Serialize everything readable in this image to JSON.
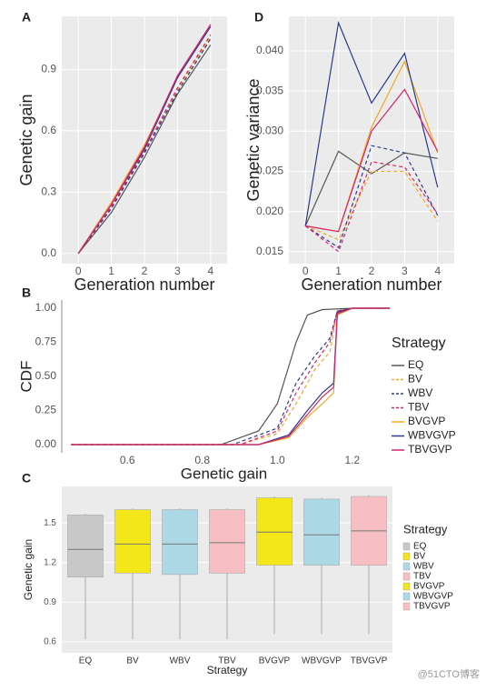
{
  "chart_data": [
    {
      "type": "line",
      "panel_label": "A",
      "xlabel": "Generation number",
      "ylabel": "Genetic gain",
      "x": [
        0,
        1,
        2,
        3,
        4
      ],
      "xlim": [
        -0.5,
        4.5
      ],
      "xticks": [
        0,
        1,
        2,
        3,
        4
      ],
      "ylim": [
        -0.05,
        1.16
      ],
      "yticks": [
        {
          "value": 0,
          "label": "0.0"
        },
        0.3,
        0.6,
        0.9
      ],
      "grid": true,
      "background": "#ebebeb",
      "series": [
        {
          "name": "EQ",
          "color": "#555555",
          "line_style": "solid",
          "values": [
            0,
            0.2,
            0.47,
            0.78,
            1.02
          ]
        },
        {
          "name": "BV",
          "color": "#f5a623",
          "line_style": "dashed",
          "values": [
            0,
            0.22,
            0.5,
            0.8,
            1.06
          ]
        },
        {
          "name": "WBV",
          "color": "#2b3a8c",
          "line_style": "dashed",
          "values": [
            0,
            0.22,
            0.49,
            0.79,
            1.05
          ]
        },
        {
          "name": "TBV",
          "color": "#d6246e",
          "line_style": "dashed",
          "values": [
            0,
            0.23,
            0.5,
            0.81,
            1.07
          ]
        },
        {
          "name": "BVGVP",
          "color": "#f5a623",
          "line_style": "solid",
          "values": [
            0,
            0.25,
            0.53,
            0.86,
            1.12
          ]
        },
        {
          "name": "WBVGVP",
          "color": "#2b3a8c",
          "line_style": "solid",
          "values": [
            0,
            0.24,
            0.51,
            0.86,
            1.11
          ]
        },
        {
          "name": "TBVGVP",
          "color": "#d6246e",
          "line_style": "solid",
          "values": [
            0,
            0.24,
            0.52,
            0.87,
            1.12
          ]
        }
      ]
    },
    {
      "type": "line",
      "panel_label": "D",
      "xlabel": "Generation number",
      "ylabel": "Genetic variance",
      "x": [
        0,
        1,
        2,
        3,
        4
      ],
      "xlim": [
        -0.5,
        4.5
      ],
      "xticks": [
        0,
        1,
        2,
        3,
        4
      ],
      "ylim": [
        0.0135,
        0.0443
      ],
      "yticks": [
        0.015,
        {
          "value": 0.02,
          "label": "0.020"
        },
        0.025,
        {
          "value": 0.03,
          "label": "0.030"
        },
        0.035,
        {
          "value": 0.04,
          "label": "0.040"
        }
      ],
      "grid": true,
      "background": "#ebebeb",
      "series": [
        {
          "name": "EQ",
          "color": "#555555",
          "line_style": "solid",
          "values": [
            0.0182,
            0.0275,
            0.0247,
            0.0273,
            0.0266
          ]
        },
        {
          "name": "BV",
          "color": "#f5a623",
          "line_style": "dashed",
          "values": [
            0.0182,
            0.0165,
            0.025,
            0.025,
            0.0188
          ]
        },
        {
          "name": "WBV",
          "color": "#2b3a8c",
          "line_style": "dashed",
          "values": [
            0.0182,
            0.0155,
            0.0282,
            0.0273,
            0.0195
          ]
        },
        {
          "name": "TBV",
          "color": "#d6246e",
          "line_style": "dashed",
          "values": [
            0.0182,
            0.015,
            0.0262,
            0.0255,
            0.0197
          ]
        },
        {
          "name": "BVGVP",
          "color": "#f5a623",
          "line_style": "solid",
          "values": [
            0.0182,
            0.0175,
            0.0305,
            0.0387,
            0.0273
          ]
        },
        {
          "name": "WBVGVP",
          "color": "#2b3a8c",
          "line_style": "solid",
          "values": [
            0.0182,
            0.0435,
            0.0335,
            0.0397,
            0.023
          ]
        },
        {
          "name": "TBVGVP",
          "color": "#d6246e",
          "line_style": "solid",
          "values": [
            0.0182,
            0.0175,
            0.03,
            0.0352,
            0.0275
          ]
        }
      ]
    },
    {
      "type": "line",
      "panel_label": "B",
      "xlabel": "Genetic gain",
      "ylabel": "CDF",
      "legend_title": "Strategy",
      "legend": "right",
      "xlim": [
        0.425,
        1.29
      ],
      "xticks": [
        0.6,
        0.8,
        {
          "value": 1,
          "label": "1.0"
        },
        1.2
      ],
      "ylim": [
        -0.06,
        1.06
      ],
      "yticks": [
        {
          "value": 0,
          "label": "0.00"
        },
        0.25,
        {
          "value": 0.5,
          "label": "0.50"
        },
        0.75,
        {
          "value": 1,
          "label": "1.00"
        }
      ],
      "grid": false,
      "background": "#ffffff",
      "series": [
        {
          "name": "EQ",
          "color": "#555555",
          "line_style": "solid",
          "x": [
            0.45,
            0.85,
            0.95,
            1.0,
            1.05,
            1.08,
            1.12,
            1.2,
            1.3
          ],
          "values": [
            0,
            0,
            0.1,
            0.3,
            0.75,
            0.95,
            0.99,
            1,
            1
          ]
        },
        {
          "name": "BV",
          "color": "#f5a623",
          "line_style": "dashed",
          "x": [
            0.45,
            0.9,
            1.0,
            1.05,
            1.1,
            1.14,
            1.16,
            1.2,
            1.3
          ],
          "values": [
            0,
            0,
            0.08,
            0.3,
            0.55,
            0.68,
            0.98,
            1,
            1
          ]
        },
        {
          "name": "WBV",
          "color": "#2b3a8c",
          "line_style": "dashed",
          "x": [
            0.45,
            0.88,
            1.0,
            1.05,
            1.1,
            1.14,
            1.16,
            1.2,
            1.3
          ],
          "values": [
            0,
            0,
            0.12,
            0.45,
            0.65,
            0.78,
            0.98,
            1,
            1
          ]
        },
        {
          "name": "TBV",
          "color": "#d6246e",
          "line_style": "dashed",
          "x": [
            0.45,
            0.9,
            1.0,
            1.05,
            1.1,
            1.14,
            1.16,
            1.2,
            1.3
          ],
          "values": [
            0,
            0,
            0.1,
            0.38,
            0.6,
            0.75,
            0.98,
            1,
            1
          ]
        },
        {
          "name": "BVGVP",
          "color": "#f5a623",
          "line_style": "solid",
          "x": [
            0.45,
            0.95,
            1.03,
            1.08,
            1.12,
            1.15,
            1.16,
            1.2,
            1.3
          ],
          "values": [
            0,
            0,
            0.05,
            0.2,
            0.3,
            0.38,
            0.95,
            1,
            1
          ]
        },
        {
          "name": "WBVGVP",
          "color": "#2b3a8c",
          "line_style": "solid",
          "x": [
            0.45,
            0.95,
            1.03,
            1.08,
            1.12,
            1.15,
            1.16,
            1.2,
            1.3
          ],
          "values": [
            0,
            0,
            0.07,
            0.25,
            0.38,
            0.45,
            0.97,
            1,
            1
          ]
        },
        {
          "name": "TBVGVP",
          "color": "#d6246e",
          "line_style": "solid",
          "x": [
            0.45,
            0.95,
            1.03,
            1.08,
            1.12,
            1.15,
            1.16,
            1.2,
            1.3
          ],
          "values": [
            0,
            0,
            0.06,
            0.22,
            0.35,
            0.42,
            0.96,
            1,
            1
          ]
        }
      ]
    },
    {
      "type": "box",
      "panel_label": "C",
      "xlabel": "Strategy",
      "ylabel": "Genetic gain",
      "legend_title": "Strategy",
      "legend": "right",
      "categories": [
        "EQ",
        "BV",
        "WBV",
        "TBV",
        "BVGVP",
        "WBVGVP",
        "TBVGVP"
      ],
      "colors": [
        "#c8c8c8",
        "#f3e619",
        "#add8e6",
        "#f7bfc4",
        "#f3e619",
        "#add8e6",
        "#f7bfc4"
      ],
      "min": [
        0.62,
        0.62,
        0.62,
        0.62,
        0.66,
        0.66,
        0.66
      ],
      "q1": [
        1.09,
        1.12,
        1.11,
        1.12,
        1.18,
        1.18,
        1.18
      ],
      "median": [
        1.3,
        1.34,
        1.34,
        1.35,
        1.43,
        1.41,
        1.44
      ],
      "q3": [
        1.56,
        1.6,
        1.6,
        1.6,
        1.69,
        1.68,
        1.7
      ],
      "max": [
        1.57,
        1.61,
        1.61,
        1.61,
        1.7,
        1.69,
        1.71
      ],
      "ylim": [
        0.517,
        1.776
      ],
      "yticks": [
        0.6,
        0.9,
        1.2,
        1.5
      ],
      "grid": true,
      "background": "#ebebeb"
    }
  ],
  "watermark": "@51CTO博客"
}
